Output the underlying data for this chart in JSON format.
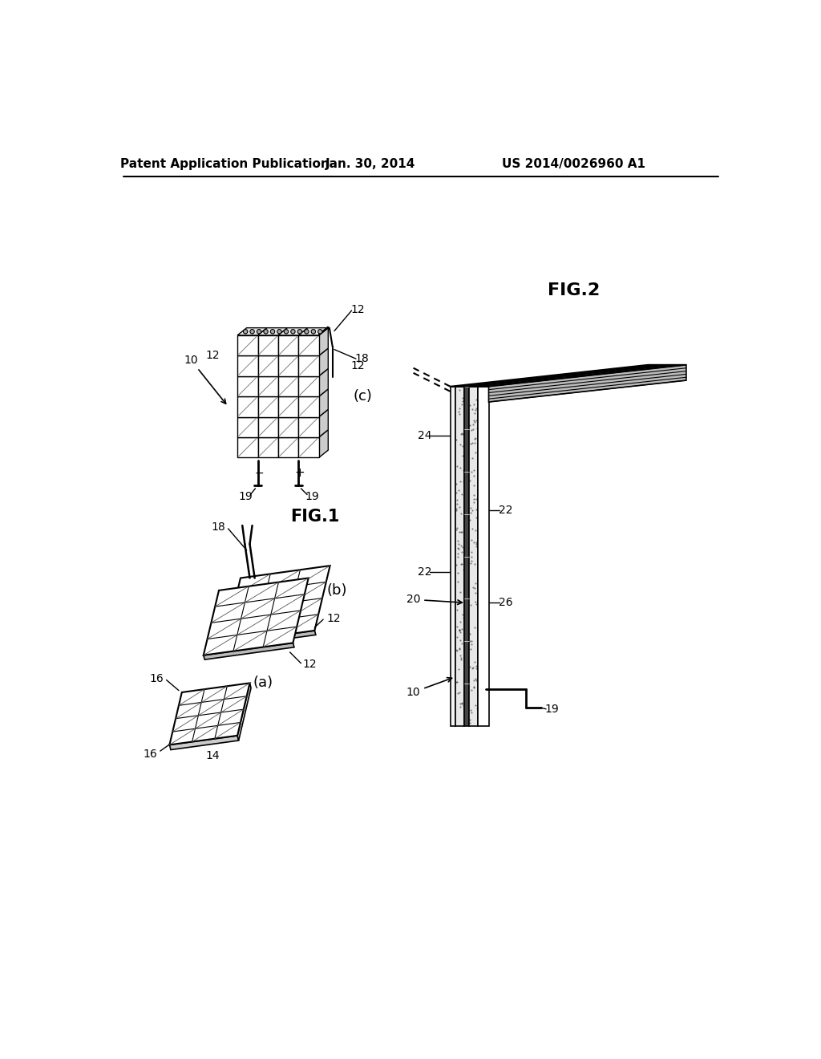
{
  "bg_color": "#ffffff",
  "header_left": "Patent Application Publication",
  "header_center": "Jan. 30, 2014",
  "header_right": "US 2014/0026960 A1"
}
